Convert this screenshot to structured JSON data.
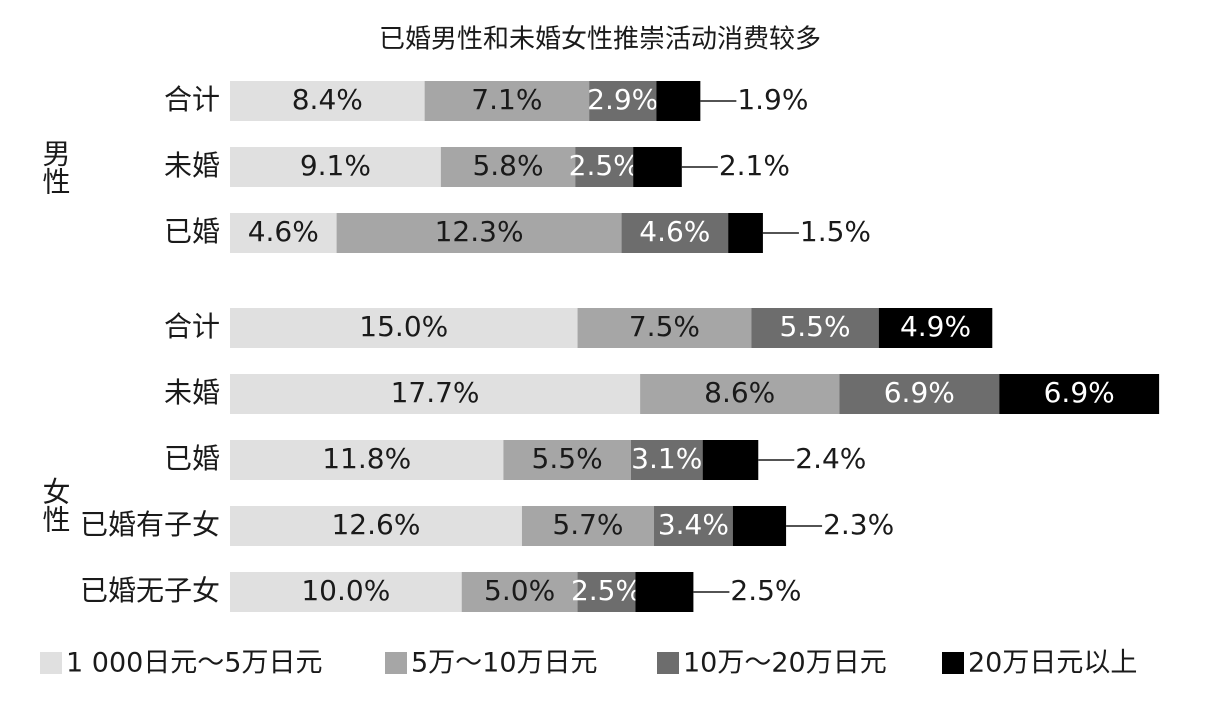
{
  "chart_data": {
    "type": "stacked-bar-horizontal",
    "title": "已婚男性和未婚女性推崇活动消费较多",
    "groups": [
      {
        "label": "男性",
        "categories": [
          "合计",
          "未婚",
          "已婚"
        ]
      },
      {
        "label": "女性",
        "categories": [
          "合计",
          "未婚",
          "已婚",
          "已婚有子女",
          "已婚无子女"
        ]
      }
    ],
    "series": [
      {
        "name": "1 000日元～5万日元",
        "color": "#e0e0e0",
        "label_color": "#1a1a1a",
        "values": [
          8.4,
          9.1,
          4.6,
          15.0,
          17.7,
          11.8,
          12.6,
          10.0
        ],
        "value_labels": [
          "8.4%",
          "9.1%",
          "4.6%",
          "15.0%",
          "17.7%",
          "11.8%",
          "12.6%",
          "10.0%"
        ]
      },
      {
        "name": "5万～10万日元",
        "color": "#a6a6a6",
        "label_color": "#1a1a1a",
        "values": [
          7.1,
          5.8,
          12.3,
          7.5,
          8.6,
          5.5,
          5.7,
          5.0
        ],
        "value_labels": [
          "7.1%",
          "5.8%",
          "12.3%",
          "7.5%",
          "8.6%",
          "5.5%",
          "5.7%",
          "5.0%"
        ]
      },
      {
        "name": "10万～20万日元",
        "color": "#6d6d6d",
        "label_color": "#ffffff",
        "values": [
          2.9,
          2.5,
          4.6,
          5.5,
          6.9,
          3.1,
          3.4,
          2.5
        ],
        "value_labels": [
          "2.9%",
          "2.5%",
          "4.6%",
          "5.5%",
          "6.9%",
          "3.1%",
          "3.4%",
          "2.5%"
        ]
      },
      {
        "name": "20万日元以上",
        "color": "#000000",
        "label_color": "#ffffff",
        "values": [
          1.9,
          2.1,
          1.5,
          4.9,
          6.9,
          2.4,
          2.3,
          2.5
        ],
        "value_labels": [
          "1.9%",
          "2.1%",
          "1.5%",
          "4.9%",
          "6.9%",
          "2.4%",
          "2.3%",
          "2.5%"
        ]
      }
    ]
  }
}
